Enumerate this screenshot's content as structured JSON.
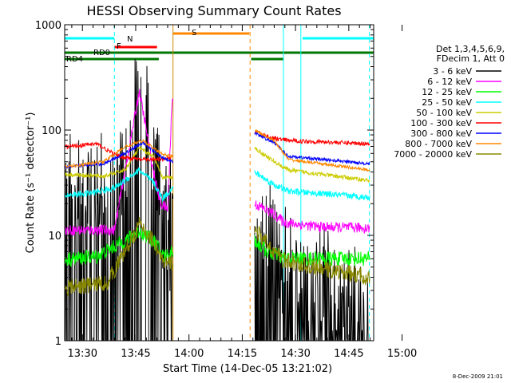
{
  "chart_data": {
    "type": "line",
    "title": "HESSI Observing Summary Count Rates",
    "xlabel": "Start Time (14-Dec-05 13:21:02)",
    "ylabel": "Count Rate (s⁻¹ detector⁻¹)",
    "yscale": "log",
    "ylim": [
      1,
      1000
    ],
    "x_range_minutes": [
      13.0,
      100.0
    ],
    "x_ticks": [
      "13:30",
      "13:45",
      "14:00",
      "14:15",
      "14:30",
      "14:45",
      "15:00"
    ],
    "y_ticks": [
      "1",
      "10",
      "100",
      "1000"
    ],
    "footer_date": "8-Dec-2009 21:01",
    "legend_header": [
      "Det 1,3,4,5,6,9,",
      "FDecim 1, Att 0"
    ],
    "series": [
      {
        "name": "3 - 6 keV",
        "color": "#000000"
      },
      {
        "name": "6 - 12 keV",
        "color": "#ff00ff"
      },
      {
        "name": "12 - 25 keV",
        "color": "#00ff00"
      },
      {
        "name": "25 - 50 keV",
        "color": "#00ffff"
      },
      {
        "name": "50 - 100 keV",
        "color": "#cccc00"
      },
      {
        "name": "100 - 300 keV",
        "color": "#ff0000"
      },
      {
        "name": "300 - 800 keV",
        "color": "#0000ff"
      },
      {
        "name": "800 - 7000 keV",
        "color": "#ff8800"
      },
      {
        "name": "7000 - 20000 keV",
        "color": "#888800"
      }
    ],
    "flags": [
      {
        "label": "N",
        "color": "#00ffff",
        "segments": [
          [
            13.0,
            27.0
          ],
          [
            80.0,
            100.0
          ]
        ]
      },
      {
        "label": "F",
        "color": "#ff0000",
        "segments": [
          [
            27.0,
            39.0
          ]
        ]
      },
      {
        "label": "S",
        "color": "#ff8800",
        "segments": [
          [
            43.5,
            65.0
          ]
        ]
      },
      {
        "label": "RD0",
        "color": "#007700",
        "segments": [
          [
            13.0,
            100.0
          ]
        ]
      },
      {
        "label": "RD4",
        "color": "#007700",
        "segments": [
          [
            13.0,
            39.5
          ],
          [
            65.5,
            74.5
          ]
        ]
      }
    ],
    "vlines": [
      {
        "t": 27.0,
        "color": "#00ffff",
        "style": "dashed"
      },
      {
        "t": 43.5,
        "color": "#cc8800",
        "style": "solid"
      },
      {
        "t": 65.2,
        "color": "#ff8800",
        "style": "dashed"
      },
      {
        "t": 74.6,
        "color": "#00ffff",
        "style": "solid"
      },
      {
        "t": 79.5,
        "color": "#00ffff",
        "style": "solid"
      },
      {
        "t": 98.8,
        "color": "#00ffff",
        "style": "dashed"
      }
    ]
  }
}
